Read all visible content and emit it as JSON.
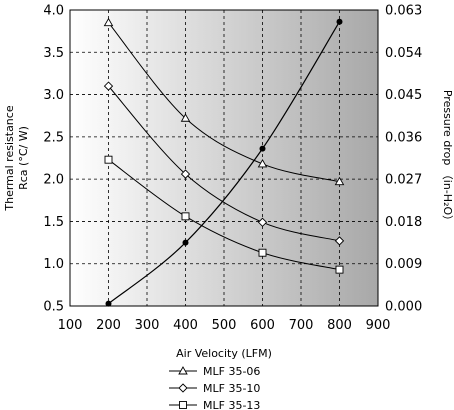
{
  "chart_data": {
    "type": "line",
    "xlabel": "Air Velocity (LFM)",
    "ylabel_left_line1": "Thermal resistance",
    "ylabel_left_line2": "Rca (°C/ W)",
    "ylabel_right": "Pressure drop （in-H₂O）",
    "x_ticks": [
      "100",
      "200",
      "300",
      "400",
      "500",
      "600",
      "700",
      "800",
      "900"
    ],
    "y_left_ticks": [
      "4.0",
      "3.5",
      "3.0",
      "2.5",
      "2.0",
      "1.5",
      "1.0",
      "0.5"
    ],
    "y_right_ticks": [
      "0.063",
      "0.054",
      "0.045",
      "0.036",
      "0.027",
      "0.018",
      "0.009",
      "0.000"
    ],
    "xlim": [
      100,
      900
    ],
    "ylim_left": [
      0.5,
      4.0
    ],
    "ylim_right": [
      0.0,
      0.063
    ],
    "grid": true,
    "legend_position": "bottom-center",
    "series": [
      {
        "name": "MLF 35-06",
        "axis": "left",
        "marker": "triangle",
        "x": [
          200,
          400,
          600,
          800
        ],
        "values": [
          3.85,
          2.72,
          2.18,
          1.97
        ]
      },
      {
        "name": "MLF 35-10",
        "axis": "left",
        "marker": "diamond",
        "x": [
          200,
          400,
          600,
          800
        ],
        "values": [
          3.1,
          2.06,
          1.49,
          1.27
        ]
      },
      {
        "name": "MLF 35-13",
        "axis": "left",
        "marker": "square",
        "x": [
          200,
          400,
          600,
          800
        ],
        "values": [
          2.23,
          1.56,
          1.13,
          0.93
        ]
      },
      {
        "axis": "right",
        "marker": "dot",
        "x": [
          200,
          400,
          600,
          800
        ],
        "values": [
          0.0005,
          0.0135,
          0.0335,
          0.0605
        ]
      }
    ]
  }
}
